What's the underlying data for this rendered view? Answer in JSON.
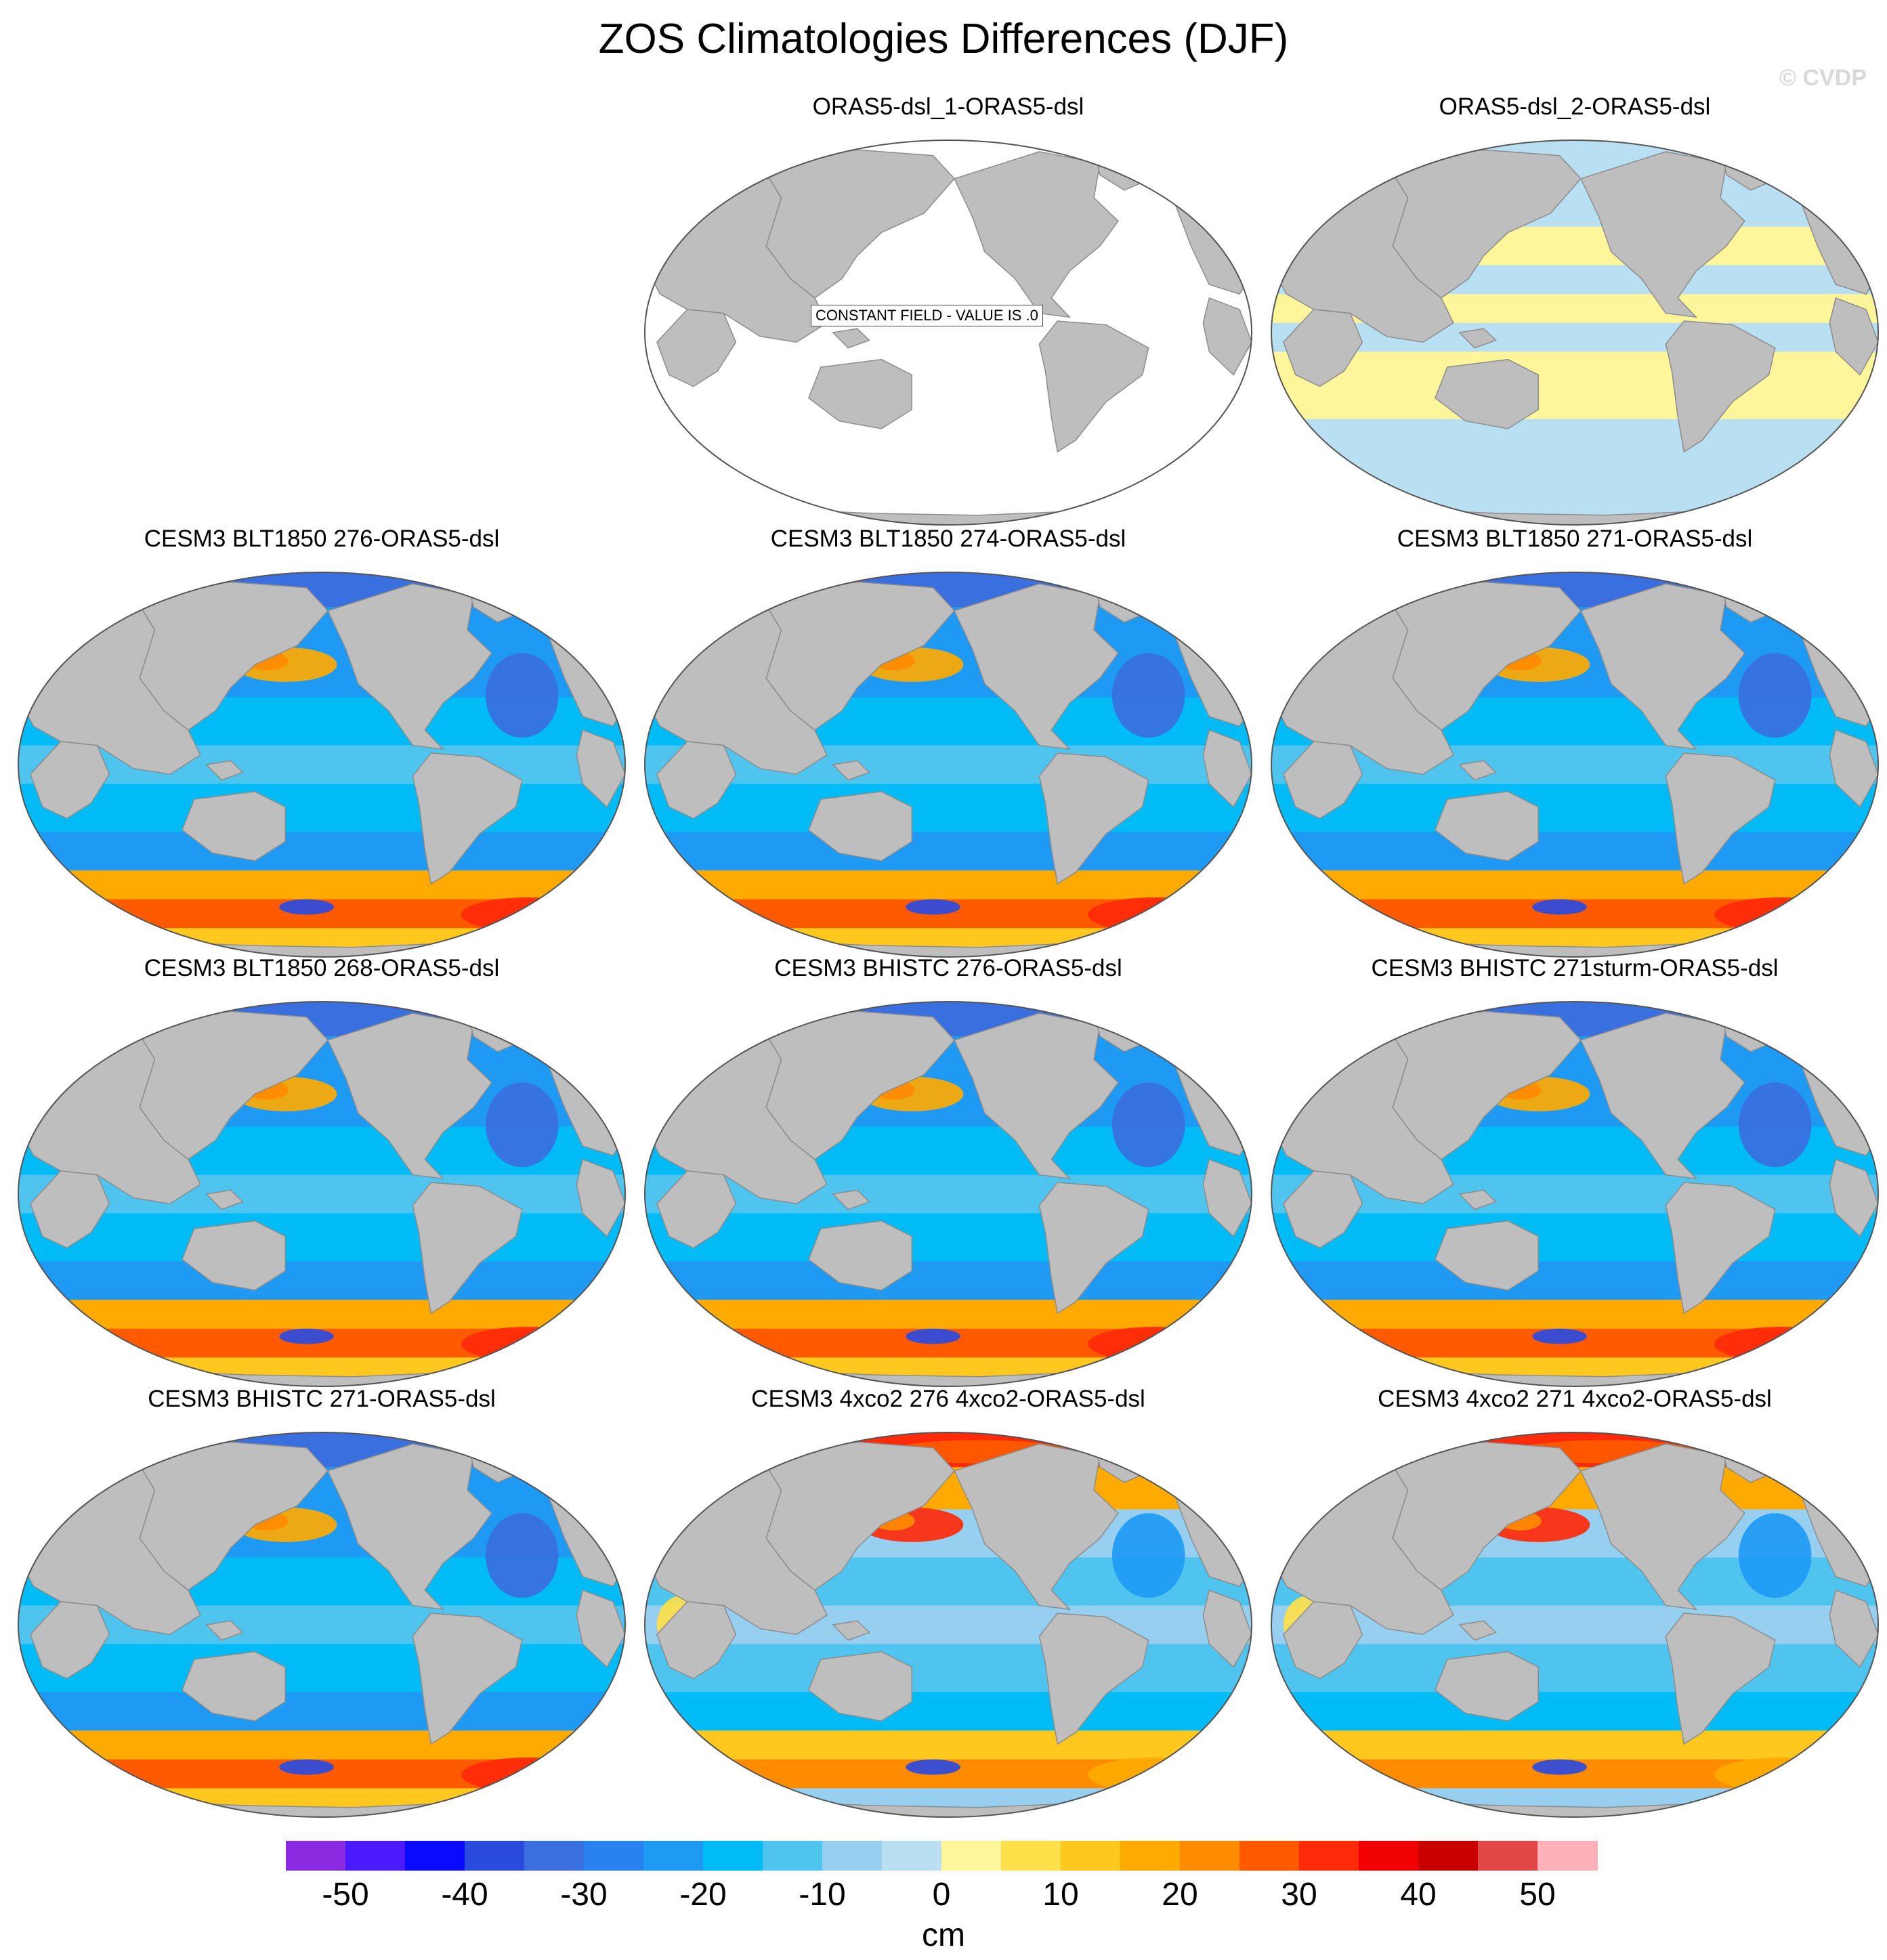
{
  "title": "ZOS Climatologies Differences (DJF)",
  "watermark": "© CVDP",
  "panels": [
    {
      "title": "ORAS5-dsl_1-ORAS5-dsl",
      "style": "constant",
      "note": "CONSTANT FIELD - VALUE IS .0"
    },
    {
      "title": "ORAS5-dsl_2-ORAS5-dsl",
      "style": "near-zero"
    },
    {
      "title": "CESM3 BLT1850 276-ORAS5-dsl",
      "style": "model"
    },
    {
      "title": "CESM3 BLT1850 274-ORAS5-dsl",
      "style": "model"
    },
    {
      "title": "CESM3 BLT1850 271-ORAS5-dsl",
      "style": "model"
    },
    {
      "title": "CESM3 BLT1850 268-ORAS5-dsl",
      "style": "model"
    },
    {
      "title": "CESM3 BHISTC 276-ORAS5-dsl",
      "style": "model"
    },
    {
      "title": "CESM3 BHISTC 271sturm-ORAS5-dsl",
      "style": "model"
    },
    {
      "title": "CESM3 BHISTC 271-ORAS5-dsl",
      "style": "model"
    },
    {
      "title": "CESM3 4xco2 276 4xco2-ORAS5-dsl",
      "style": "warm"
    },
    {
      "title": "CESM3 4xco2 271 4xco2-ORAS5-dsl",
      "style": "warm"
    }
  ],
  "colorbar": {
    "units": "cm",
    "levels": [
      -55,
      -50,
      -45,
      -40,
      -35,
      -30,
      -25,
      -20,
      -15,
      -10,
      -5,
      0,
      5,
      10,
      15,
      20,
      25,
      30,
      35,
      40,
      45,
      50,
      55
    ],
    "colors": [
      "#8a2be2",
      "#4b1aff",
      "#0a0aff",
      "#2b4bdf",
      "#3a6fe0",
      "#2a82f0",
      "#1e9af5",
      "#00bbf5",
      "#4ec4ee",
      "#96cff0",
      "#b8dff2",
      "#fff59a",
      "#ffdf4a",
      "#ffc81e",
      "#ffaa00",
      "#ff8b00",
      "#ff5a00",
      "#ff2a0a",
      "#f00000",
      "#c80000",
      "#e04848",
      "#ffb0b8"
    ],
    "tick_labels": [
      "-50",
      "-40",
      "-30",
      "-20",
      "-10",
      "0",
      "10",
      "20",
      "30",
      "40",
      "50"
    ],
    "tick_values": [
      -50,
      -40,
      -30,
      -20,
      -10,
      0,
      10,
      20,
      30,
      40,
      50
    ]
  },
  "map_colors": {
    "land": "#bebebe",
    "coast": "#8c8c8c",
    "ocean_constant": "#ffffff"
  }
}
